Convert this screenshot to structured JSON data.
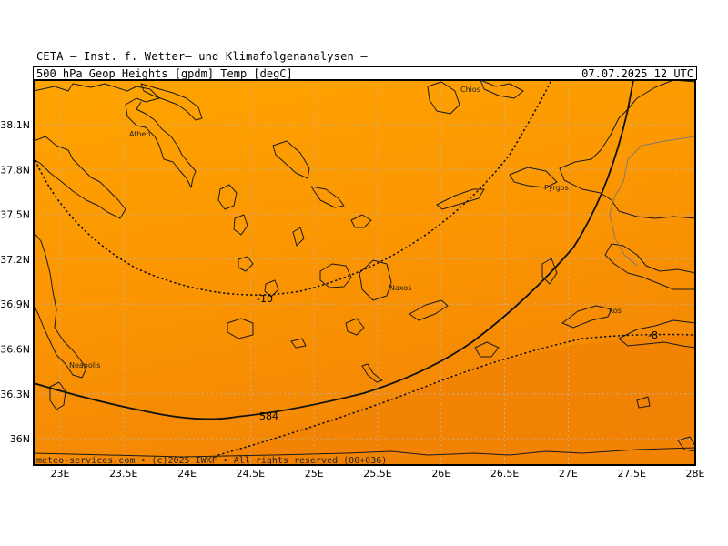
{
  "header": {
    "institute": "CETA — Inst. f. Wetter— und Klimafolgenanalysen —",
    "product": "500_hPa_Geop_Heights_[gpdm]_Temp_[degC]",
    "valid_time": "07.07.2025 12 UTC"
  },
  "axes": {
    "lon_ticks": [
      "23E",
      "23.5E",
      "24E",
      "24.5E",
      "25E",
      "25.5E",
      "26E",
      "26.5E",
      "27E",
      "27.5E",
      "28E"
    ],
    "lat_ticks": [
      "38.1N",
      "37.8N",
      "37.5N",
      "37.2N",
      "36.9N",
      "36.6N",
      "36.3N",
      "36N"
    ]
  },
  "places": {
    "athen": "Athen",
    "chios": "Chios",
    "pyrgos": "Pyrgos",
    "naxos": "Naxos",
    "kos": "Kos",
    "neapolis": "Neapolis"
  },
  "contours": {
    "geopotential_label": "584",
    "temp_label_west": "-10",
    "temp_label_east": "-8"
  },
  "footer": {
    "credit": "meteo-services.com • (c)2025 IWKF • All rights reserved (00+036)"
  },
  "colors": {
    "fill_north": "#ffa500",
    "fill_south": "#f58a05",
    "coast": "#1a1a1a",
    "border": "#7a7a7a",
    "grid": "#b0b0b0"
  }
}
